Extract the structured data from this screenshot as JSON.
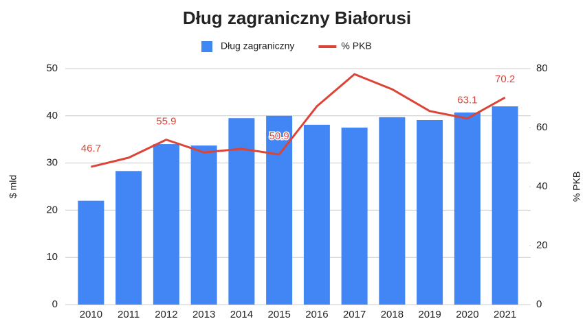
{
  "chart_data": {
    "type": "combo",
    "title": "Dług zagraniczny Białorusi",
    "categories": [
      "2010",
      "2011",
      "2012",
      "2013",
      "2014",
      "2015",
      "2016",
      "2017",
      "2018",
      "2019",
      "2020",
      "2021"
    ],
    "series": [
      {
        "name": "Dług zagraniczny",
        "type": "bar",
        "color": "#4285f4",
        "axis": "y",
        "values": [
          22,
          28.3,
          34,
          33.7,
          39.5,
          40,
          38.1,
          37.5,
          39.7,
          39.1,
          40.7,
          42
        ]
      },
      {
        "name": "% PKB",
        "type": "line",
        "color": "#db4437",
        "axis": "y2",
        "values": [
          46.7,
          49.8,
          55.9,
          51.6,
          52.8,
          50.9,
          67.2,
          78.1,
          73,
          65.6,
          63.1,
          70.2
        ],
        "value_labels": [
          "46.7",
          null,
          "55.9",
          null,
          null,
          "50.9",
          null,
          null,
          null,
          null,
          "63.1",
          "70.2"
        ]
      }
    ],
    "ylabel": "$ mld",
    "y2label": "% PKB",
    "ylim": [
      0,
      50
    ],
    "yticks": [
      0,
      10,
      20,
      30,
      40,
      50
    ],
    "y2lim": [
      0,
      80
    ],
    "y2ticks": [
      0,
      20,
      40,
      60,
      80
    ],
    "grid": true,
    "legend": "top"
  }
}
